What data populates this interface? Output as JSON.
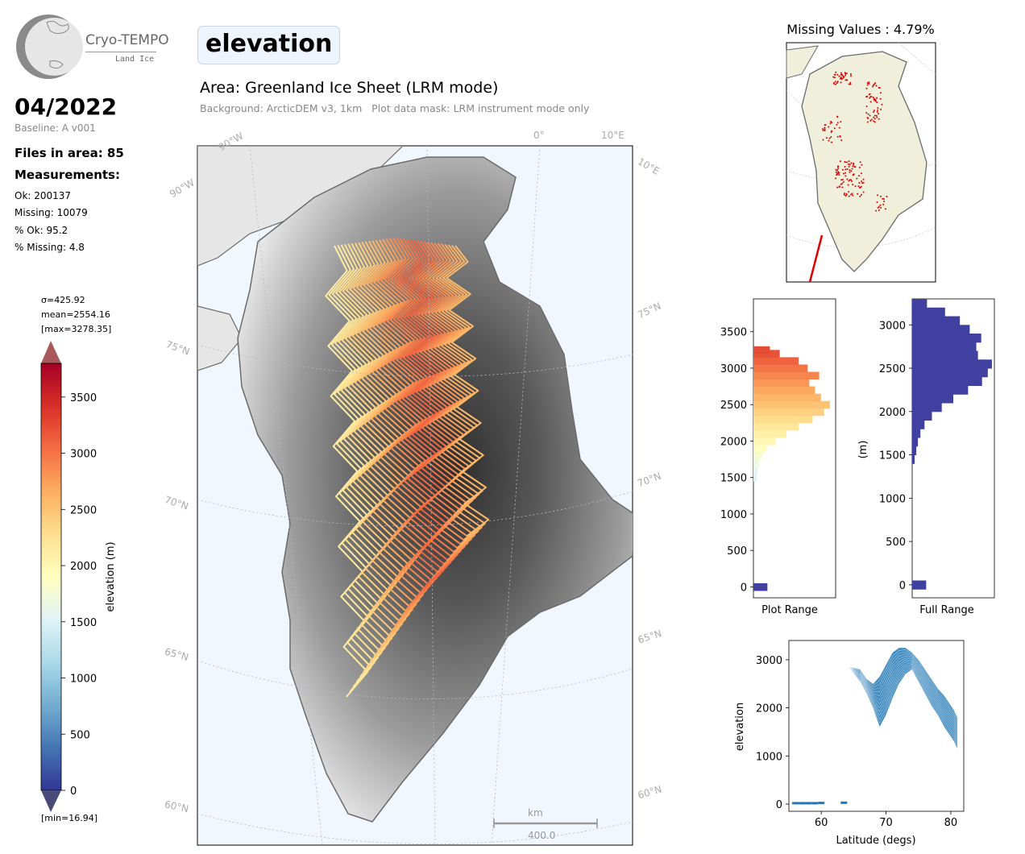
{
  "logo": {
    "name": "Cryo-TEMPO",
    "sub": "Land Ice"
  },
  "header": {
    "parameter": "elevation",
    "date": "04/2022",
    "baseline": "Baseline: A v001",
    "area_title": "Area: Greenland Ice Sheet (LRM mode)",
    "background_note": "Background: ArcticDEM v3, 1km   Plot data mask: LRM instrument mode only"
  },
  "stats": {
    "files": "Files in area: 85",
    "measurements_title": "Measurements:",
    "ok": "Ok: 200137",
    "missing": "Missing: 10079",
    "pct_ok": "% Ok: 95.2",
    "pct_missing": "% Missing: 4.8"
  },
  "colorbar": {
    "sigma": "σ=425.92",
    "mean": "mean=2554.16",
    "max": "[max=3278.35]",
    "min": "[min=16.94]",
    "label": "elevation (m)",
    "ticks": [
      0,
      500,
      1000,
      1500,
      2000,
      2500,
      3000,
      3500
    ],
    "range": [
      0,
      3800
    ],
    "colormap": [
      "#313695",
      "#4575b4",
      "#74add1",
      "#abd9e9",
      "#e0f3f8",
      "#ffffbf",
      "#fee090",
      "#fdae61",
      "#f46d43",
      "#d73027",
      "#a50026"
    ],
    "under_color": "#4a4a78",
    "over_color": "#a85a5a"
  },
  "map": {
    "lat_labels": [
      "75°N",
      "70°N",
      "65°N",
      "60°N"
    ],
    "lon_labels": [
      "90°W",
      "0°",
      "10°E"
    ],
    "lat_labels_left": [
      "75°N",
      "70°N",
      "65°N",
      "60°N"
    ],
    "lon_labels_left": [
      "90°W",
      "90°W"
    ],
    "lon_label_right": "10°E",
    "scale_unit": "km",
    "scale_value": "400.0",
    "ocean_color": "#f0f7ff",
    "track_count": 36
  },
  "inset": {
    "title": "Missing Values : 4.79%",
    "land_color": "#efefdc",
    "missing_color": "#e00000"
  },
  "chart_data": [
    {
      "type": "bar",
      "name_hint": "plot-range-histogram",
      "orientation": "horizontal",
      "xlabel": "Plot Range",
      "ylabel": "",
      "ylim": [
        -150,
        3950
      ],
      "yticks": [
        0,
        500,
        1000,
        1500,
        2000,
        2500,
        3000,
        3500
      ],
      "bins": [
        {
          "y": 0,
          "count": 0.17
        },
        {
          "y": 1500,
          "count": 0.04
        },
        {
          "y": 1600,
          "count": 0.05
        },
        {
          "y": 1700,
          "count": 0.07
        },
        {
          "y": 1800,
          "count": 0.1
        },
        {
          "y": 1900,
          "count": 0.16
        },
        {
          "y": 2000,
          "count": 0.27
        },
        {
          "y": 2100,
          "count": 0.4
        },
        {
          "y": 2200,
          "count": 0.55
        },
        {
          "y": 2300,
          "count": 0.72
        },
        {
          "y": 2400,
          "count": 0.86
        },
        {
          "y": 2500,
          "count": 0.93
        },
        {
          "y": 2600,
          "count": 0.82
        },
        {
          "y": 2700,
          "count": 0.75
        },
        {
          "y": 2800,
          "count": 0.68
        },
        {
          "y": 2900,
          "count": 0.8
        },
        {
          "y": 3000,
          "count": 0.66
        },
        {
          "y": 3100,
          "count": 0.55
        },
        {
          "y": 3200,
          "count": 0.32
        },
        {
          "y": 3250,
          "count": 0.2
        }
      ]
    },
    {
      "type": "bar",
      "name_hint": "full-range-histogram",
      "orientation": "horizontal",
      "xlabel": "Full Range",
      "ylabel": "(m)",
      "ylim": [
        -150,
        3300
      ],
      "yticks": [
        0,
        500,
        1000,
        1500,
        2000,
        2500,
        3000
      ],
      "bar_color": "#4040a0",
      "bins": [
        {
          "y": 0,
          "count": 0.17
        },
        {
          "y": 1450,
          "count": 0.03
        },
        {
          "y": 1550,
          "count": 0.05
        },
        {
          "y": 1650,
          "count": 0.07
        },
        {
          "y": 1750,
          "count": 0.1
        },
        {
          "y": 1850,
          "count": 0.15
        },
        {
          "y": 1950,
          "count": 0.24
        },
        {
          "y": 2050,
          "count": 0.36
        },
        {
          "y": 2150,
          "count": 0.5
        },
        {
          "y": 2250,
          "count": 0.68
        },
        {
          "y": 2350,
          "count": 0.85
        },
        {
          "y": 2450,
          "count": 0.92
        },
        {
          "y": 2550,
          "count": 0.97
        },
        {
          "y": 2650,
          "count": 0.8
        },
        {
          "y": 2750,
          "count": 0.78
        },
        {
          "y": 2850,
          "count": 0.84
        },
        {
          "y": 2950,
          "count": 0.7
        },
        {
          "y": 3050,
          "count": 0.58
        },
        {
          "y": 3150,
          "count": 0.4
        },
        {
          "y": 3250,
          "count": 0.18
        }
      ]
    },
    {
      "type": "scatter",
      "name_hint": "elevation-vs-latitude",
      "xlabel": "Latitude (degs)",
      "ylabel": "elevation",
      "xlim": [
        55,
        82
      ],
      "ylim": [
        -150,
        3400
      ],
      "xticks": [
        60,
        70,
        80
      ],
      "yticks": [
        0,
        1000,
        2000,
        3000
      ],
      "color": "#1f77b4",
      "profile": {
        "lat": [
          64.5,
          66,
          67,
          68,
          69,
          70,
          71,
          72,
          73,
          74,
          75,
          76,
          77,
          78,
          79,
          80,
          80.5,
          81
        ],
        "upper": [
          2850,
          2800,
          2600,
          2500,
          2650,
          2900,
          3150,
          3250,
          3250,
          3150,
          3000,
          2800,
          2600,
          2400,
          2250,
          2050,
          1950,
          1800
        ],
        "lower": [
          2800,
          2550,
          2300,
          2000,
          1600,
          1850,
          2200,
          2500,
          2700,
          2800,
          2550,
          2300,
          2050,
          1850,
          1600,
          1400,
          1300,
          1150
        ]
      },
      "outliers": [
        {
          "lat": 56,
          "elev": 10
        },
        {
          "lat": 57,
          "elev": 10
        },
        {
          "lat": 58,
          "elev": 10
        },
        {
          "lat": 59,
          "elev": 10
        },
        {
          "lat": 60,
          "elev": 15
        },
        {
          "lat": 63.5,
          "elev": 20
        }
      ]
    }
  ]
}
